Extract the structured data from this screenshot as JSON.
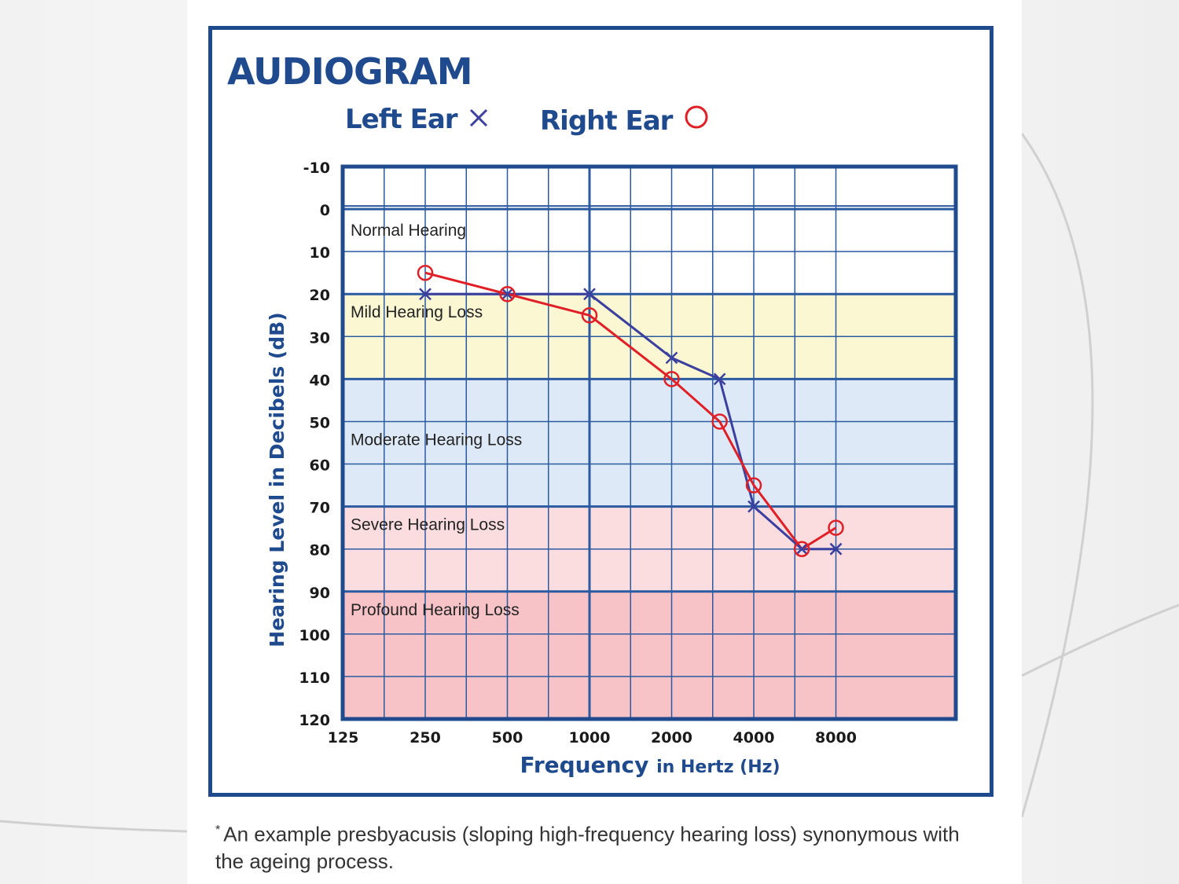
{
  "colors": {
    "frame": "#1f4b8e",
    "left_ear": "#3b3f9e",
    "right_ear": "#e01f26",
    "normal": "#ffffff",
    "mild": "#fbf7d2",
    "moderate": "#dde9f6",
    "severe": "#fbdde0",
    "profound": "#f8c3c7"
  },
  "chart_data": {
    "type": "line",
    "title": "AUDIOGRAM",
    "xlabel_main": "Frequency",
    "xlabel_rest": "in Hertz (Hz)",
    "ylabel": "Hearing Level in Decibels (dB)",
    "ylim": [
      -10,
      120
    ],
    "y_ticks": [
      "-10",
      "0",
      "10",
      "20",
      "30",
      "40",
      "50",
      "60",
      "70",
      "80",
      "90",
      "100",
      "110",
      "120"
    ],
    "x_tick_labels": [
      "125",
      "250",
      "500",
      "1000",
      "2000",
      "4000",
      "8000"
    ],
    "x_tick_values": [
      125,
      250,
      500,
      1000,
      2000,
      4000,
      8000
    ],
    "x_scale": "log2",
    "grid": true,
    "legend": {
      "placement": "top",
      "left_label": "Left Ear",
      "right_label": "Right Ear"
    },
    "bands": [
      {
        "label": "Normal Hearing",
        "from": -10,
        "to": 20,
        "color_key": "normal"
      },
      {
        "label": "Mild Hearing Loss",
        "from": 20,
        "to": 40,
        "color_key": "mild"
      },
      {
        "label": "Moderate Hearing Loss",
        "from": 40,
        "to": 70,
        "color_key": "moderate"
      },
      {
        "label": "Severe Hearing Loss",
        "from": 70,
        "to": 90,
        "color_key": "severe"
      },
      {
        "label": "Profound Hearing Loss",
        "from": 90,
        "to": 120,
        "color_key": "profound"
      }
    ],
    "series": [
      {
        "name": "Left Ear",
        "marker": "x",
        "color_key": "left_ear",
        "x": [
          250,
          500,
          1000,
          2000,
          3000,
          4000,
          6000,
          8000
        ],
        "y": [
          20,
          20,
          20,
          35,
          40,
          70,
          80,
          80
        ]
      },
      {
        "name": "Right Ear",
        "marker": "o",
        "color_key": "right_ear",
        "x": [
          250,
          500,
          1000,
          2000,
          3000,
          4000,
          6000,
          8000
        ],
        "y": [
          15,
          20,
          25,
          40,
          50,
          65,
          80,
          75
        ]
      }
    ]
  },
  "footnote": {
    "star": "*",
    "text": "An example presbyacusis (sloping high-frequency hearing loss) synonymous with the ageing process."
  }
}
